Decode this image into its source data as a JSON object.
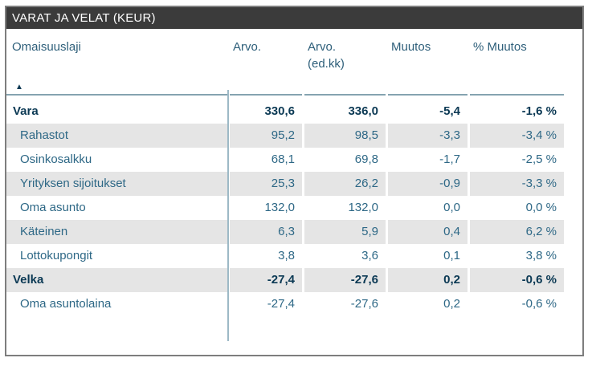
{
  "widget": {
    "title": "VARAT JA VELAT (KEUR)"
  },
  "icons": {
    "sort_ascending": "▲"
  },
  "table": {
    "columns": [
      {
        "label": "Omaisuuslaji"
      },
      {
        "label": "Arvo."
      },
      {
        "label": "Arvo.",
        "sublabel": "(ed.kk)"
      },
      {
        "label": "Muutos"
      },
      {
        "label": "% Muutos"
      }
    ],
    "rows": [
      {
        "cells": [
          "Vara",
          "330,6",
          "336,0",
          "-5,4",
          "-1,6 %"
        ],
        "total": true
      },
      {
        "cells": [
          "Rahastot",
          "95,2",
          "98,5",
          "-3,3",
          "-3,4 %"
        ]
      },
      {
        "cells": [
          "Osinkosalkku",
          "68,1",
          "69,8",
          "-1,7",
          "-2,5 %"
        ]
      },
      {
        "cells": [
          "Yrityksen sijoitukset",
          "25,3",
          "26,2",
          "-0,9",
          "-3,3 %"
        ]
      },
      {
        "cells": [
          "Oma asunto",
          "132,0",
          "132,0",
          "0,0",
          "0,0 %"
        ]
      },
      {
        "cells": [
          "Käteinen",
          "6,3",
          "5,9",
          "0,4",
          "6,2 %"
        ]
      },
      {
        "cells": [
          "Lottokupongit",
          "3,8",
          "3,6",
          "0,1",
          "3,8 %"
        ]
      },
      {
        "cells": [
          "Velka",
          "-27,4",
          "-27,6",
          "0,2",
          "-0,6 %"
        ],
        "total": true
      },
      {
        "cells": [
          "Oma asuntolaina",
          "-27,4",
          "-27,6",
          "0,2",
          "-0,6 %"
        ]
      }
    ]
  },
  "colors": {
    "title_bar_bg": "#3b3b3b",
    "title_text": "#ffffff",
    "text_regular": "#2e6886",
    "text_total": "#0b3954",
    "header_text": "#2e5f7a",
    "row_band": "#e5e5e5",
    "separator_line": "#85a3b0",
    "column_divider": "#9db9c6",
    "widget_border": "#7e7e7e"
  },
  "chart_data": {
    "type": "table",
    "title": "VARAT JA VELAT (KEUR)",
    "unit": "KEUR",
    "columns": [
      "Omaisuuslaji",
      "Arvo.",
      "Arvo. (ed.kk)",
      "Muutos",
      "% Muutos"
    ],
    "sort": {
      "column": "Omaisuuslaji",
      "direction": "ascending"
    },
    "rows": [
      {
        "omaisuuslaji": "Vara",
        "arvo": 330.6,
        "arvo_ed_kk": 336.0,
        "muutos": -5.4,
        "pct_muutos": -1.6,
        "is_total": true
      },
      {
        "omaisuuslaji": "Rahastot",
        "arvo": 95.2,
        "arvo_ed_kk": 98.5,
        "muutos": -3.3,
        "pct_muutos": -3.4
      },
      {
        "omaisuuslaji": "Osinkosalkku",
        "arvo": 68.1,
        "arvo_ed_kk": 69.8,
        "muutos": -1.7,
        "pct_muutos": -2.5
      },
      {
        "omaisuuslaji": "Yrityksen sijoitukset",
        "arvo": 25.3,
        "arvo_ed_kk": 26.2,
        "muutos": -0.9,
        "pct_muutos": -3.3
      },
      {
        "omaisuuslaji": "Oma asunto",
        "arvo": 132.0,
        "arvo_ed_kk": 132.0,
        "muutos": 0.0,
        "pct_muutos": 0.0
      },
      {
        "omaisuuslaji": "Käteinen",
        "arvo": 6.3,
        "arvo_ed_kk": 5.9,
        "muutos": 0.4,
        "pct_muutos": 6.2
      },
      {
        "omaisuuslaji": "Lottokupongit",
        "arvo": 3.8,
        "arvo_ed_kk": 3.6,
        "muutos": 0.1,
        "pct_muutos": 3.8
      },
      {
        "omaisuuslaji": "Velka",
        "arvo": -27.4,
        "arvo_ed_kk": -27.6,
        "muutos": 0.2,
        "pct_muutos": -0.6,
        "is_total": true
      },
      {
        "omaisuuslaji": "Oma asuntolaina",
        "arvo": -27.4,
        "arvo_ed_kk": -27.6,
        "muutos": 0.2,
        "pct_muutos": -0.6
      }
    ]
  }
}
